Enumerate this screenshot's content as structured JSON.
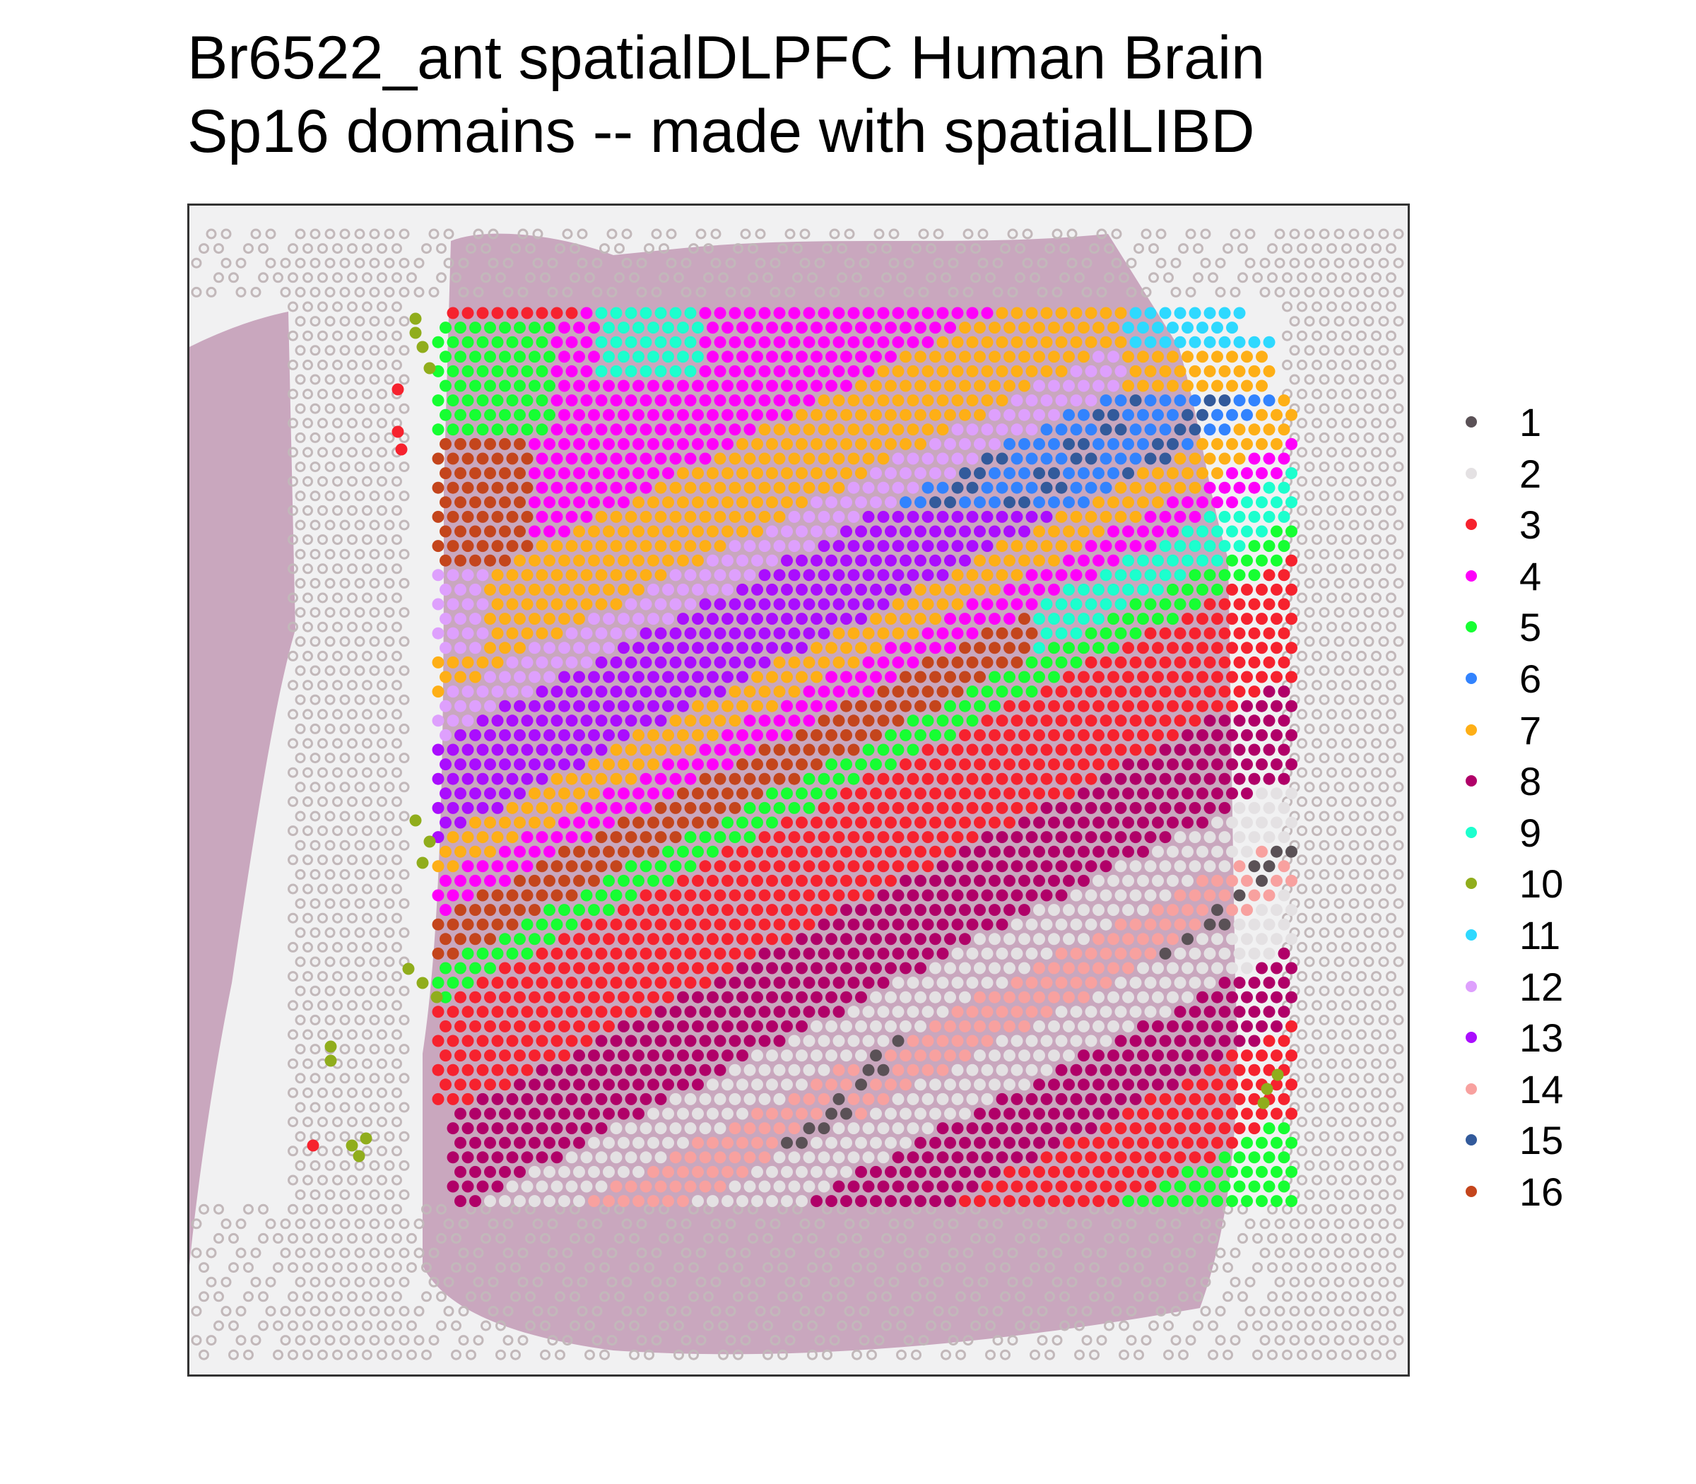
{
  "title": {
    "line1": "Br6522_ant spatialDLPFC Human Brain",
    "line2": "Sp16 domains -- made with spatialLIBD"
  },
  "plot": {
    "background_image": "H&E stained human brain tissue section with Visium spot grid",
    "tissue_color": "#a86a93",
    "spot_outline_color": "#c2b8ba"
  },
  "legend": {
    "items": [
      {
        "label": "1",
        "color": "#5A5156"
      },
      {
        "label": "2",
        "color": "#E4E1E3"
      },
      {
        "label": "3",
        "color": "#F6222E"
      },
      {
        "label": "4",
        "color": "#FE00FA"
      },
      {
        "label": "5",
        "color": "#16FF32"
      },
      {
        "label": "6",
        "color": "#3283FE"
      },
      {
        "label": "7",
        "color": "#FEAF16"
      },
      {
        "label": "8",
        "color": "#B00068"
      },
      {
        "label": "9",
        "color": "#1CFFCE"
      },
      {
        "label": "10",
        "color": "#90AD1C"
      },
      {
        "label": "11",
        "color": "#2ED9FF"
      },
      {
        "label": "12",
        "color": "#DEA0FD"
      },
      {
        "label": "13",
        "color": "#AA0DFE"
      },
      {
        "label": "14",
        "color": "#F8A19F"
      },
      {
        "label": "15",
        "color": "#325A9B"
      },
      {
        "label": "16",
        "color": "#C4451C"
      }
    ]
  }
}
